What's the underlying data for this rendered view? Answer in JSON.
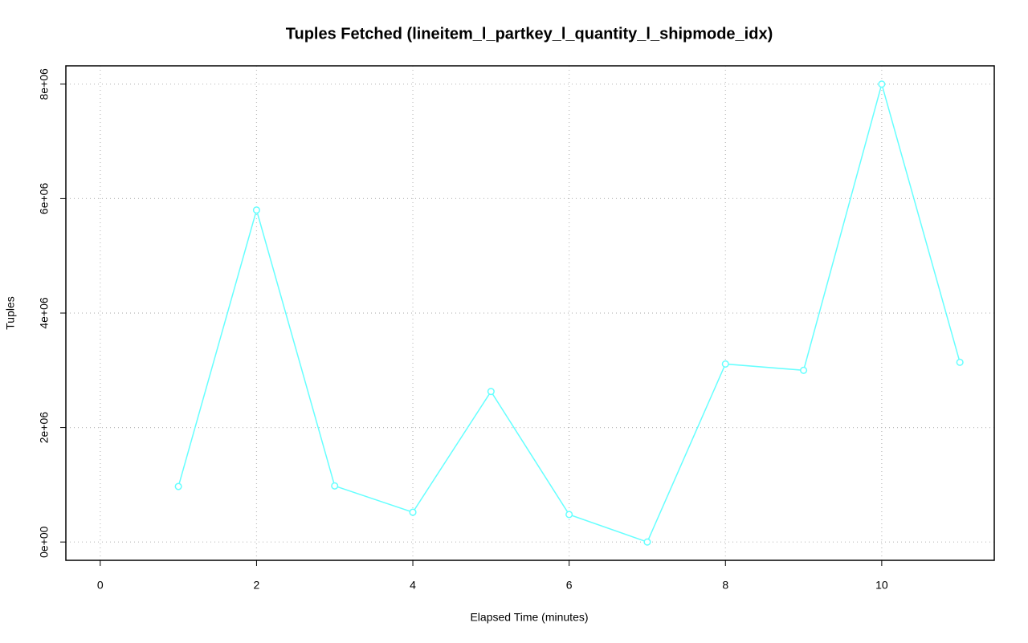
{
  "chart_data": {
    "type": "line",
    "title": "Tuples Fetched (lineitem_l_partkey_l_quantity_l_shipmode_idx)",
    "x_label": "Elapsed Time (minutes)",
    "y_label": "Tuples",
    "x": [
      1,
      2,
      3,
      4,
      5,
      6,
      7,
      8,
      9,
      10,
      11
    ],
    "series": [
      {
        "name": "Tuples",
        "color": "#66ffff",
        "values": [
          970000,
          5800000,
          980000,
          520000,
          2630000,
          480000,
          0,
          3110000,
          3000000,
          8000000,
          3140000
        ]
      }
    ],
    "xlim": [
      -0.44,
      11.44
    ],
    "xticks": [
      0,
      2,
      4,
      6,
      8,
      10
    ],
    "ylim": [
      -320000,
      8320000
    ],
    "yticks": [
      {
        "value": 0,
        "label": "0e+00"
      },
      {
        "value": 2000000,
        "label": "2e+06"
      },
      {
        "value": 4000000,
        "label": "4e+06"
      },
      {
        "value": 6000000,
        "label": "6e+06"
      },
      {
        "value": 8000000,
        "label": "8e+06"
      }
    ],
    "grid": true
  }
}
